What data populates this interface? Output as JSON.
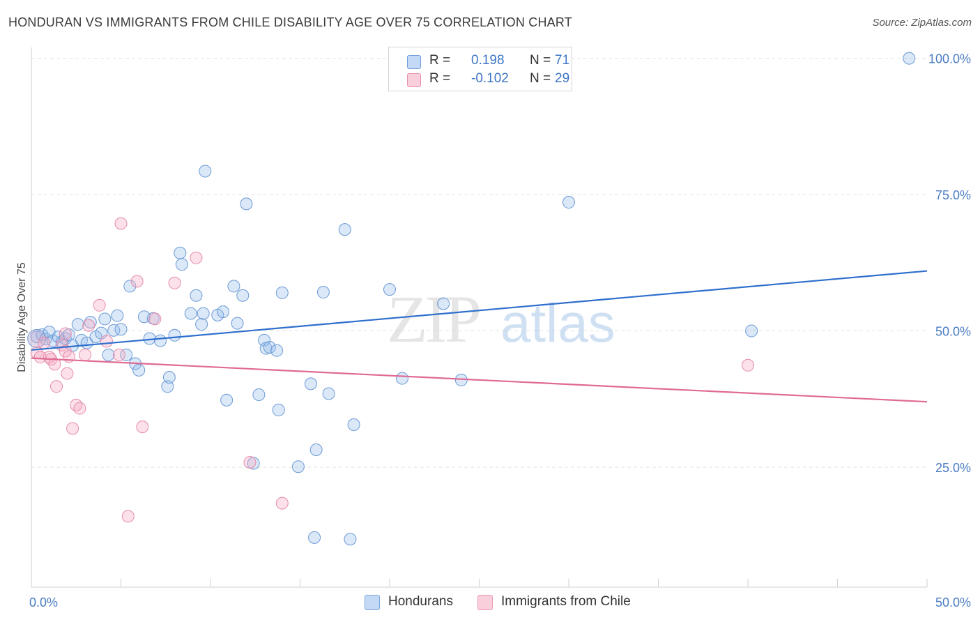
{
  "title": "HONDURAN VS IMMIGRANTS FROM CHILE DISABILITY AGE OVER 75 CORRELATION CHART",
  "source": "Source: ZipAtlas.com",
  "watermark": {
    "zip": "ZIP",
    "atlas": "atlas"
  },
  "legend": {
    "r_label": "R =",
    "n_label": "N =",
    "rows": [
      {
        "r": "0.198",
        "n": "71",
        "color": "#a9c8ef",
        "border": "#6f9fd8"
      },
      {
        "r": "-0.102",
        "n": "29",
        "color": "#f7bfd0",
        "border": "#e890ab"
      }
    ]
  },
  "bottom_legend": [
    {
      "label": "Hondurans",
      "color": "#c4d9f5",
      "border": "#7ea7dc"
    },
    {
      "label": "Immigrants from Chile",
      "color": "#f9cfdc",
      "border": "#e99ab3"
    }
  ],
  "colors": {
    "blue_fill": "rgba(150,190,235,0.35)",
    "blue_stroke": "#6c9ad6",
    "blue_line": "#2f6fcd",
    "pink_fill": "rgba(245,170,195,0.35)",
    "pink_stroke": "#e58cab",
    "pink_line": "#e06a95"
  },
  "chart_data": {
    "type": "scatter",
    "title": "HONDURAN VS IMMIGRANTS FROM CHILE DISABILITY AGE OVER 75 CORRELATION CHART",
    "ylabel": "Disability Age Over 75",
    "xlabel": "",
    "xlim": [
      0,
      50
    ],
    "ylim": [
      3,
      102
    ],
    "x_tick_labels": [
      "0.0%",
      "50.0%"
    ],
    "y_tick_labels": [
      {
        "value": 100,
        "label": "100.0%"
      },
      {
        "value": 75,
        "label": "75.0%"
      },
      {
        "value": 50,
        "label": "50.0%"
      },
      {
        "value": 25,
        "label": "25.0%"
      }
    ],
    "grid": true,
    "series": [
      {
        "name": "Hondurans",
        "trend": [
          [
            0,
            46.5
          ],
          [
            50,
            61.0
          ]
        ],
        "points": [
          [
            0.3,
            48.9
          ],
          [
            0.6,
            49.3
          ],
          [
            0.8,
            48.5
          ],
          [
            1.0,
            49.8
          ],
          [
            1.2,
            48.2
          ],
          [
            1.5,
            48.9
          ],
          [
            1.7,
            48.0
          ],
          [
            1.9,
            48.6
          ],
          [
            2.1,
            49.3
          ],
          [
            2.3,
            47.3
          ],
          [
            2.6,
            51.2
          ],
          [
            2.8,
            48.3
          ],
          [
            3.1,
            47.8
          ],
          [
            3.3,
            51.6
          ],
          [
            3.6,
            48.9
          ],
          [
            3.9,
            49.6
          ],
          [
            4.1,
            52.2
          ],
          [
            4.3,
            45.6
          ],
          [
            4.6,
            50.1
          ],
          [
            4.8,
            52.8
          ],
          [
            5.0,
            50.3
          ],
          [
            5.3,
            45.6
          ],
          [
            5.5,
            58.2
          ],
          [
            5.8,
            44.0
          ],
          [
            6.0,
            42.8
          ],
          [
            6.3,
            52.6
          ],
          [
            6.6,
            48.6
          ],
          [
            6.8,
            52.3
          ],
          [
            7.2,
            48.2
          ],
          [
            7.6,
            39.8
          ],
          [
            7.7,
            41.5
          ],
          [
            8.0,
            49.2
          ],
          [
            8.3,
            64.3
          ],
          [
            8.4,
            62.2
          ],
          [
            8.9,
            53.2
          ],
          [
            9.2,
            56.5
          ],
          [
            9.5,
            51.2
          ],
          [
            9.6,
            53.2
          ],
          [
            9.7,
            79.3
          ],
          [
            10.4,
            52.9
          ],
          [
            10.7,
            53.5
          ],
          [
            10.9,
            37.3
          ],
          [
            11.3,
            58.2
          ],
          [
            11.5,
            51.4
          ],
          [
            11.8,
            56.5
          ],
          [
            12.0,
            73.3
          ],
          [
            12.4,
            25.7
          ],
          [
            12.7,
            38.3
          ],
          [
            13.0,
            48.3
          ],
          [
            13.1,
            46.8
          ],
          [
            13.3,
            47.0
          ],
          [
            13.7,
            46.4
          ],
          [
            13.8,
            35.5
          ],
          [
            14.0,
            57.0
          ],
          [
            14.9,
            25.1
          ],
          [
            15.6,
            40.3
          ],
          [
            15.8,
            12.1
          ],
          [
            15.9,
            28.2
          ],
          [
            16.3,
            57.1
          ],
          [
            16.6,
            38.5
          ],
          [
            17.5,
            68.6
          ],
          [
            17.8,
            11.8
          ],
          [
            18.0,
            32.8
          ],
          [
            20.0,
            57.6
          ],
          [
            20.7,
            41.3
          ],
          [
            23.0,
            55.0
          ],
          [
            24.0,
            41.0
          ],
          [
            30.0,
            73.6
          ],
          [
            40.2,
            50.0
          ],
          [
            49.0,
            100.0
          ]
        ],
        "big_point": [
          0.3,
          48.6
        ]
      },
      {
        "name": "Immigrants from Chile",
        "trend": [
          [
            0,
            45.0
          ],
          [
            50,
            37.0
          ]
        ],
        "points": [
          [
            0.3,
            46.0
          ],
          [
            0.5,
            45.2
          ],
          [
            0.7,
            47.8
          ],
          [
            1.0,
            45.2
          ],
          [
            1.1,
            44.8
          ],
          [
            1.3,
            43.9
          ],
          [
            1.4,
            39.8
          ],
          [
            1.7,
            47.4
          ],
          [
            1.9,
            46.3
          ],
          [
            1.9,
            49.5
          ],
          [
            2.0,
            42.2
          ],
          [
            2.1,
            45.3
          ],
          [
            2.3,
            32.1
          ],
          [
            2.5,
            36.4
          ],
          [
            2.7,
            35.8
          ],
          [
            3.0,
            45.6
          ],
          [
            3.2,
            51.0
          ],
          [
            3.8,
            54.7
          ],
          [
            4.2,
            48.1
          ],
          [
            4.9,
            45.6
          ],
          [
            5.0,
            69.7
          ],
          [
            5.4,
            16.0
          ],
          [
            5.9,
            59.1
          ],
          [
            6.2,
            32.4
          ],
          [
            6.9,
            52.2
          ],
          [
            8.0,
            58.8
          ],
          [
            9.2,
            63.4
          ],
          [
            12.2,
            25.9
          ],
          [
            14.0,
            18.4
          ],
          [
            40.0,
            43.7
          ]
        ]
      }
    ]
  }
}
